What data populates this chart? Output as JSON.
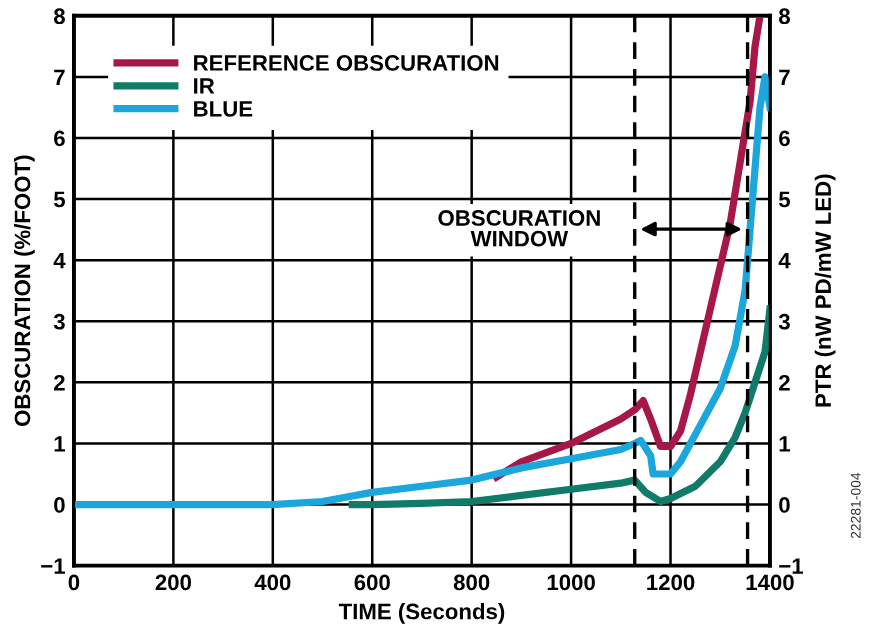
{
  "chart_data": {
    "type": "line",
    "xlabel": "TIME (Seconds)",
    "ylabel": "OBSCURATION (%/FOOT)",
    "y2label": "PTR (nW PD/mW LED)",
    "xlim": [
      0,
      1400
    ],
    "xticks": [
      0,
      200,
      400,
      600,
      800,
      1000,
      1200,
      1400
    ],
    "ylim": [
      -1,
      8
    ],
    "yticks": [
      {
        "value": -1,
        "label": "−1"
      },
      0,
      1,
      2,
      3,
      4,
      5,
      6,
      7,
      8
    ],
    "y2lim": [
      -1,
      8
    ],
    "y2ticks": [
      {
        "value": -1,
        "label": "−1"
      },
      0,
      1,
      2,
      3,
      4,
      5,
      6,
      7,
      8
    ],
    "grid": true,
    "legend": "top left",
    "line_style": "solid",
    "marker": "none",
    "series": [
      {
        "name": "REFERENCE OBSCURATION",
        "color": "#a8174a",
        "x": [
          850,
          900,
          950,
          1000,
          1050,
          1100,
          1128,
          1145,
          1160,
          1180,
          1200,
          1220,
          1240,
          1260,
          1280,
          1300,
          1320,
          1340,
          1360,
          1370,
          1380
        ],
        "values": [
          0.45,
          0.7,
          0.85,
          1.0,
          1.2,
          1.4,
          1.55,
          1.7,
          1.4,
          0.95,
          0.95,
          1.2,
          1.8,
          2.5,
          3.2,
          3.9,
          4.6,
          5.6,
          6.6,
          7.5,
          8.0
        ]
      },
      {
        "name": "IR",
        "color": "#0f7b68",
        "x": [
          560,
          600,
          700,
          800,
          900,
          1000,
          1100,
          1128,
          1150,
          1180,
          1200,
          1250,
          1300,
          1330,
          1350,
          1370,
          1390,
          1400
        ],
        "values": [
          0.0,
          0.0,
          0.02,
          0.05,
          0.15,
          0.25,
          0.35,
          0.4,
          0.2,
          0.05,
          0.1,
          0.3,
          0.7,
          1.1,
          1.5,
          2.0,
          2.5,
          3.2
        ]
      },
      {
        "name": "BLUE",
        "color": "#1ba6dc",
        "x": [
          0,
          100,
          200,
          300,
          400,
          500,
          600,
          700,
          800,
          900,
          1000,
          1100,
          1128,
          1140,
          1160,
          1165,
          1200,
          1220,
          1260,
          1300,
          1330,
          1350,
          1360,
          1370,
          1380,
          1390,
          1400
        ],
        "values": [
          0.0,
          0.0,
          0.0,
          0.0,
          0.0,
          0.05,
          0.2,
          0.3,
          0.4,
          0.6,
          0.75,
          0.9,
          1.0,
          1.05,
          0.8,
          0.5,
          0.5,
          0.7,
          1.3,
          1.9,
          2.6,
          3.5,
          4.5,
          5.5,
          6.5,
          7.0,
          6.5
        ]
      }
    ],
    "ref_lines": [
      {
        "axis": "x",
        "value": 1128,
        "color": "#000000",
        "line_style": "dashed"
      },
      {
        "axis": "x",
        "value": 1355,
        "color": "#000000",
        "line_style": "dashed"
      }
    ],
    "annotations": [
      "OBSCURATION\nWINDOW",
      "22281-004"
    ]
  }
}
